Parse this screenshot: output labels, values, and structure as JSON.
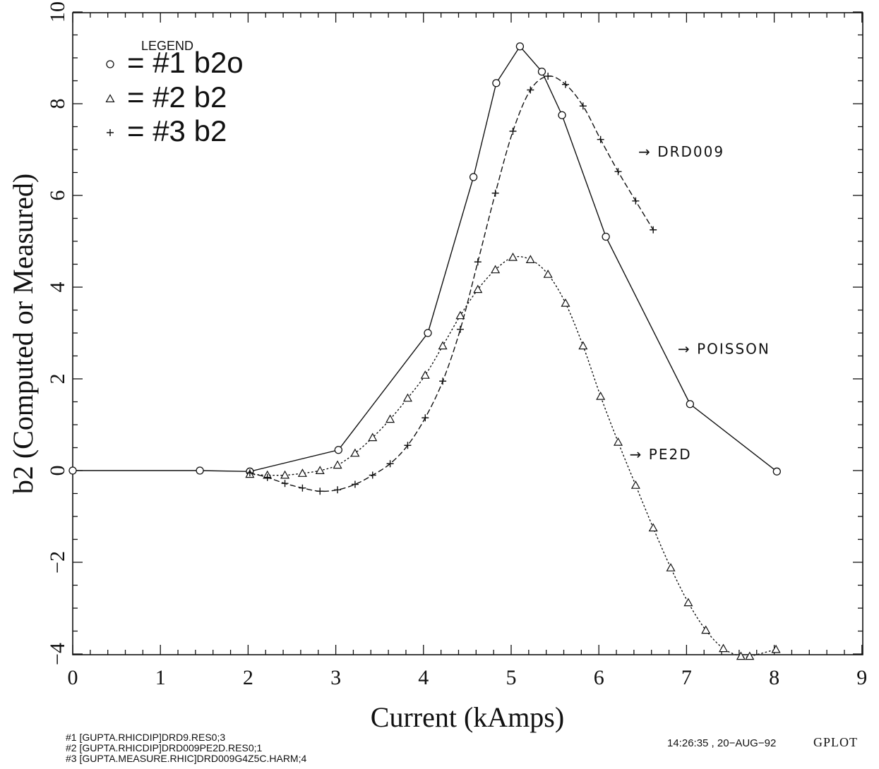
{
  "chart_data": {
    "type": "line",
    "title": "",
    "xlabel": "Current (kAmps)",
    "ylabel": "b2 (Computed or Measured)",
    "xlim": [
      0,
      9
    ],
    "ylim": [
      -4,
      10
    ],
    "x_ticks": [
      0,
      1,
      2,
      3,
      4,
      5,
      6,
      7,
      8,
      9
    ],
    "y_ticks": [
      -4,
      -2,
      0,
      2,
      4,
      6,
      8,
      10
    ],
    "x_tick_labels": [
      "0",
      "1",
      "2",
      "3",
      "4",
      "5",
      "6",
      "7",
      "8",
      "9"
    ],
    "y_tick_labels": [
      "−4",
      "−2",
      "0",
      "2",
      "4",
      "6",
      "8",
      "10"
    ],
    "grid": false,
    "legend_title": "LEGEND",
    "legend_position": "top-left",
    "series": [
      {
        "legend_label": "= #1 b2o",
        "marker": "circle",
        "line_style": "solid",
        "x": [
          0.0,
          1.45,
          2.02,
          3.03,
          4.05,
          4.57,
          4.83,
          5.1,
          5.35,
          5.58,
          6.08,
          7.04,
          8.03
        ],
        "y": [
          0.0,
          0.0,
          -0.02,
          0.45,
          3.0,
          6.4,
          8.45,
          9.25,
          8.7,
          7.75,
          5.1,
          1.45,
          -0.02
        ]
      },
      {
        "legend_label": "= #2 b2",
        "marker": "triangle",
        "line_style": "dotted",
        "x": [
          2.02,
          2.22,
          2.42,
          2.62,
          2.82,
          3.02,
          3.22,
          3.42,
          3.62,
          3.82,
          4.02,
          4.22,
          4.42,
          4.62,
          4.82,
          5.02,
          5.22,
          5.42,
          5.62,
          5.82,
          6.02,
          6.22,
          6.42,
          6.62,
          6.82,
          7.02,
          7.22,
          7.42,
          7.62,
          7.72,
          8.02
        ],
        "y": [
          -0.08,
          -0.1,
          -0.1,
          -0.06,
          -0.0,
          0.12,
          0.38,
          0.72,
          1.12,
          1.58,
          2.08,
          2.72,
          3.38,
          3.95,
          4.38,
          4.65,
          4.6,
          4.28,
          3.65,
          2.72,
          1.62,
          0.62,
          -0.32,
          -1.25,
          -2.12,
          -2.88,
          -3.48,
          -3.88,
          -4.05,
          -4.05,
          -3.9
        ]
      },
      {
        "legend_label": "= #3 b2",
        "marker": "plus",
        "line_style": "dashed",
        "x": [
          2.02,
          2.22,
          2.42,
          2.62,
          2.82,
          3.02,
          3.22,
          3.42,
          3.62,
          3.82,
          4.02,
          4.22,
          4.42,
          4.62,
          4.82,
          5.02,
          5.22,
          5.42,
          5.62,
          5.82,
          6.02,
          6.22,
          6.42,
          6.62
        ],
        "y": [
          -0.05,
          -0.15,
          -0.28,
          -0.38,
          -0.45,
          -0.42,
          -0.3,
          -0.1,
          0.15,
          0.55,
          1.15,
          1.95,
          3.08,
          4.55,
          6.05,
          7.4,
          8.3,
          8.6,
          8.42,
          7.95,
          7.22,
          6.52,
          5.88,
          5.25
        ]
      }
    ],
    "annotations": [
      {
        "text": "→ DRD009",
        "x": 6.45,
        "y": 6.85
      },
      {
        "text": "→ POISSON",
        "x": 6.9,
        "y": 2.55
      },
      {
        "text": "→ PE2D",
        "x": 6.35,
        "y": 0.25
      }
    ]
  },
  "footer": {
    "sources": [
      "#1 [GUPTA.RHICDIP]DRD9.RES0;3",
      "#2 [GUPTA.RHICDIP]DRD009PE2D.RES0;1",
      "#3 [GUPTA.MEASURE.RHIC]DRD009G4Z5C.HARM;4"
    ],
    "timestamp": "14:26:35 , 20−AUG−92",
    "program": "GPLOT"
  }
}
